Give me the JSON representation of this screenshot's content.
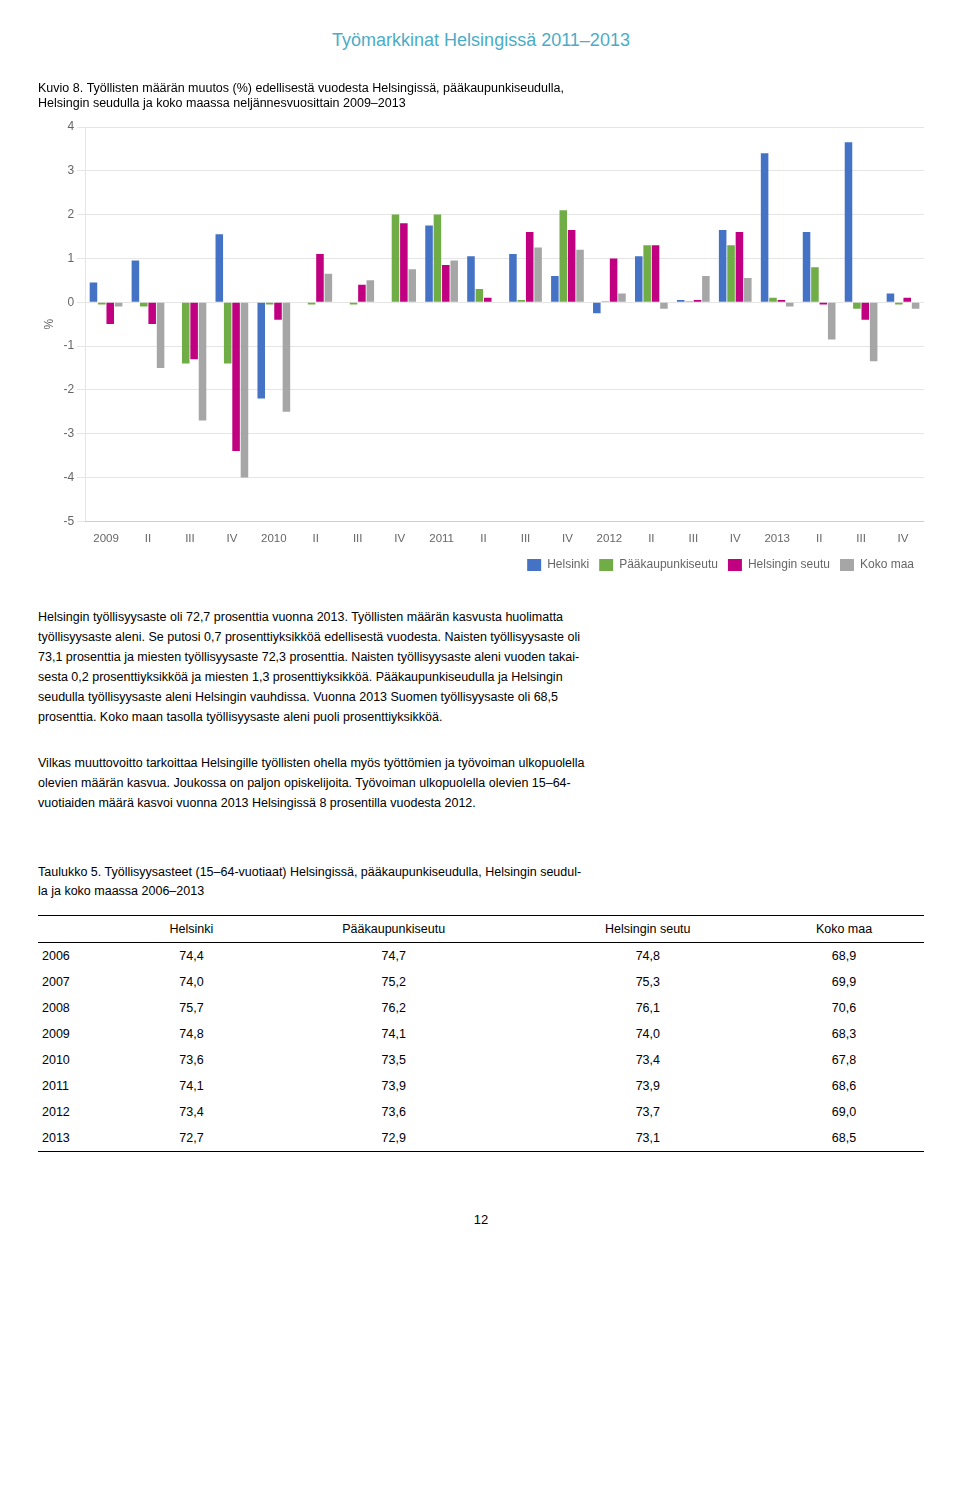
{
  "page_title": "Työmarkkinat Helsingissä 2011–2013",
  "chart_data": {
    "type": "bar",
    "title": [
      "Kuvio 8. Työllisten määrän muutos (%) edellisestä vuodesta Helsingissä, pääkaupunkiseudulla,",
      "Helsingin seudulla ja koko maassa neljännesvuosittain 2009–2013"
    ],
    "y_label": "%",
    "categories": [
      "2009",
      "II",
      "III",
      "IV",
      "2010",
      "II",
      "III",
      "IV",
      "2011",
      "II",
      "III",
      "IV",
      "2012",
      "II",
      "III",
      "IV",
      "2013",
      "II",
      "III",
      "IV"
    ],
    "series": [
      {
        "name": "Helsinki",
        "color": "#4472C4",
        "values": [
          0.45,
          0.95,
          null,
          1.55,
          -2.2,
          null,
          null,
          null,
          1.75,
          1.05,
          1.1,
          0.6,
          -0.25,
          1.05,
          0.05,
          1.65,
          3.4,
          1.6,
          3.65,
          0.2
        ]
      },
      {
        "name": "Pääkaupunkiseutu",
        "color": "#70AD47",
        "values": [
          -0.05,
          -0.1,
          -1.4,
          -1.4,
          -0.05,
          -0.05,
          -0.05,
          2.0,
          2.0,
          0.3,
          0.05,
          2.1,
          0.02,
          1.3,
          0.02,
          1.3,
          0.1,
          0.8,
          -0.15,
          -0.05
        ]
      },
      {
        "name": "Helsingin seutu",
        "color": "#C00080",
        "values": [
          -0.5,
          -0.5,
          -1.3,
          -3.4,
          -0.4,
          1.1,
          0.4,
          1.8,
          0.85,
          0.1,
          1.6,
          1.65,
          1.0,
          1.3,
          0.05,
          1.6,
          0.05,
          -0.05,
          -0.4,
          0.1
        ]
      },
      {
        "name": "Koko maa",
        "color": "#A6A6A6",
        "values": [
          -0.1,
          -1.5,
          -2.7,
          -4.0,
          -2.5,
          0.65,
          0.5,
          0.75,
          0.95,
          0.0,
          1.25,
          1.2,
          0.2,
          -0.15,
          0.6,
          0.55,
          -0.1,
          -0.85,
          -1.35,
          -0.15
        ]
      }
    ],
    "ylim": [
      -5,
      4
    ],
    "yticks": [
      -5,
      -4,
      -3,
      -2,
      -1,
      0,
      1,
      2,
      3,
      4
    ],
    "grid": true,
    "legend": "lower right"
  },
  "body_text": [
    "Helsingin työllisyysaste oli 72,7 prosenttia vuonna 2013. Työllisten määrän kasvusta huolimatta\ntyöllisyysaste aleni. Se putosi 0,7 prosenttiyksikköä edellisestä vuodesta. Naisten työllisyysaste oli\n73,1 prosenttia ja miesten työllisyysaste 72,3 prosenttia. Naisten työllisyysaste aleni vuoden takai-\nsesta 0,2 prosenttiyksikköä ja miesten 1,3 prosenttiyksikköä. Pääkaupunkiseudulla ja Helsingin\nseudulla työllisyysaste aleni Helsingin vauhdissa. Vuonna 2013 Suomen työllisyysaste oli 68,5\nprosenttia. Koko maan tasolla työllisyysaste aleni puoli prosenttiyksikköä.",
    "Vilkas muuttovoitto tarkoittaa Helsingille työllisten ohella myös työttömien ja työvoiman ulkopuolella\nolevien määrän kasvua.  Joukossa on paljon opiskelijoita. Työvoiman ulkopuolella olevien 15–64-\nvuotiaiden määrä kasvoi vuonna 2013 Helsingissä 8 prosentilla vuodesta 2012."
  ],
  "table": {
    "title": [
      "Taulukko 5. Työllisyysasteet (15–64-vuotiaat) Helsingissä, pääkaupunkiseudulla, Helsingin seudul-",
      "la ja koko maassa 2006–2013"
    ],
    "headers": [
      "",
      "Helsinki",
      "Pääkaupunkiseutu",
      "Helsingin seutu",
      "Koko maa"
    ],
    "rows": [
      [
        "2006",
        "74,4",
        "74,7",
        "74,8",
        "68,9"
      ],
      [
        "2007",
        "74,0",
        "75,2",
        "75,3",
        "69,9"
      ],
      [
        "2008",
        "75,7",
        "76,2",
        "76,1",
        "70,6"
      ],
      [
        "2009",
        "74,8",
        "74,1",
        "74,0",
        "68,3"
      ],
      [
        "2010",
        "73,6",
        "73,5",
        "73,4",
        "67,8"
      ],
      [
        "2011",
        "74,1",
        "73,9",
        "73,9",
        "68,6"
      ],
      [
        "2012",
        "73,4",
        "73,6",
        "73,7",
        "69,0"
      ],
      [
        "2013",
        "72,7",
        "72,9",
        "73,1",
        "68,5"
      ]
    ]
  },
  "page_number": "12"
}
